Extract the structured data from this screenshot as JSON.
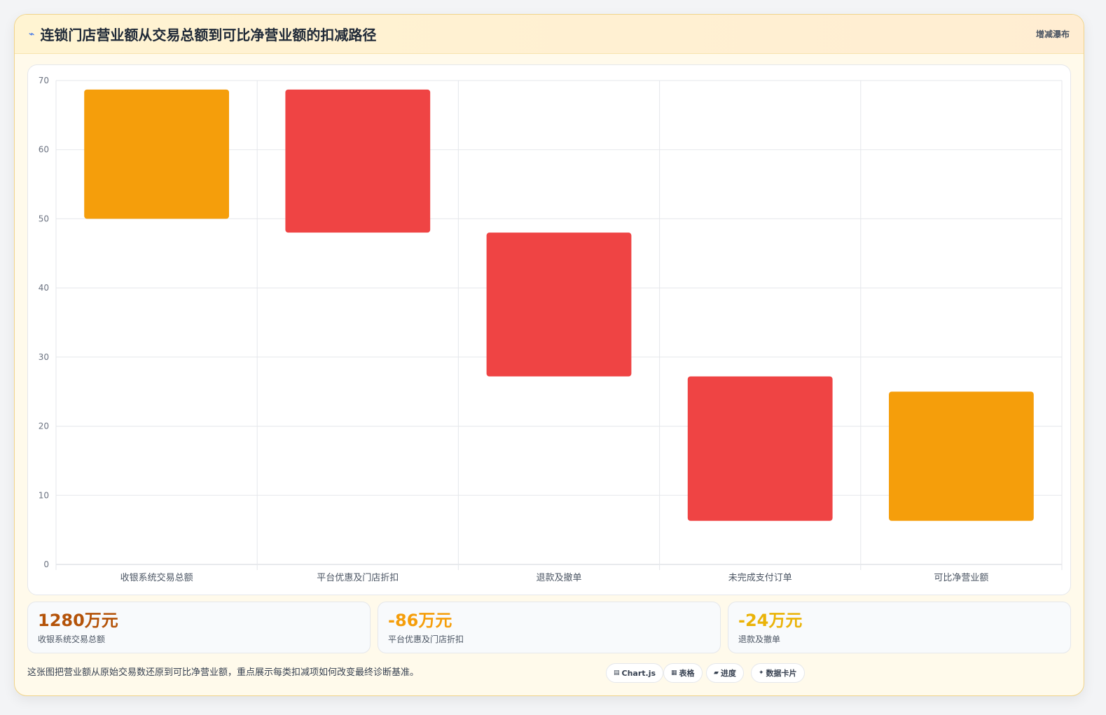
{
  "header": {
    "title": "连锁门店营业额从交易总额到可比净营业额的扣减路径",
    "badge": "增减瀑布",
    "icon": "sparkline-icon"
  },
  "colors": {
    "total": "#f59e0b",
    "decrease": "#ef4444",
    "stat_primary": "#b45309",
    "stat_secondary": "#f59e0b"
  },
  "chart_data": {
    "type": "bar",
    "subtype": "waterfall-floating",
    "categories": [
      "收银系统交易总额",
      "平台优惠及门店折扣",
      "退款及撤单",
      "未完成支付订单",
      "可比净营业额"
    ],
    "ranges": [
      [
        50,
        68.7
      ],
      [
        48,
        68.7
      ],
      [
        27.2,
        48
      ],
      [
        6.3,
        27.2
      ],
      [
        6.3,
        25
      ]
    ],
    "kinds": [
      "total",
      "decrease",
      "decrease",
      "decrease",
      "total"
    ],
    "ylim": [
      0,
      70
    ],
    "yticks": [
      0,
      10,
      20,
      30,
      40,
      50,
      60,
      70
    ],
    "grid": true,
    "legend": "none"
  },
  "stats": [
    {
      "value": "1280万元",
      "label": "收银系统交易总额"
    },
    {
      "value": "-86万元",
      "label": "平台优惠及门店折扣"
    },
    {
      "value": "-24万元",
      "label": "退款及撤单"
    }
  ],
  "footer": {
    "description": "这张图把营业额从原始交易数还原到可比净营业额，重点展示每类扣减项如何改变最终诊断基准。",
    "chips": [
      {
        "icon": "chart-icon",
        "glyph": "▤",
        "label": "Chart.js"
      },
      {
        "icon": "table-icon",
        "glyph": "▦",
        "label": "表格"
      },
      {
        "icon": "progress-icon",
        "glyph": "▰",
        "label": "进度"
      },
      {
        "icon": "sparkle-icon",
        "glyph": "✦",
        "label": "数据卡片"
      }
    ]
  }
}
